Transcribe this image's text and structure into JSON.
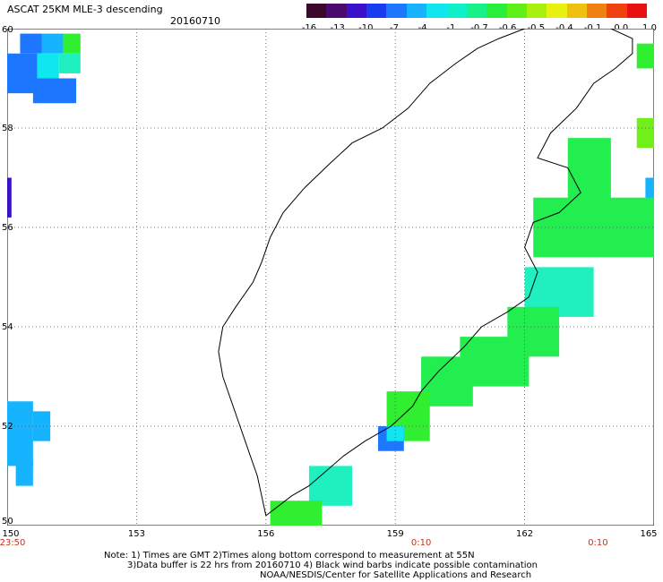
{
  "header": {
    "title": "ASCAT 25KM MLE-3 descending",
    "date": "20160710"
  },
  "colorbar": {
    "colors": [
      "#3a0a2a",
      "#4b0a6e",
      "#3a10c8",
      "#1a3cf0",
      "#1e78ff",
      "#16b4ff",
      "#10e6f0",
      "#10f0c8",
      "#18f08a",
      "#28ee3c",
      "#60f018",
      "#a8f010",
      "#e8f010",
      "#f0c010",
      "#f08010",
      "#f04010",
      "#e81010"
    ],
    "tick_labels": [
      "-16",
      "-13",
      "-10",
      "-7",
      "-4",
      "-1",
      "-0.7",
      "-0.6",
      "-0.5",
      "-0.4",
      "-0.1",
      "0.0",
      "1.0"
    ]
  },
  "axes": {
    "lat_labels": [
      "60",
      "58",
      "56",
      "54",
      "52",
      "50"
    ],
    "lon_labels": [
      "150",
      "153",
      "156",
      "159",
      "162",
      "165"
    ],
    "time_labels": [
      "23:50",
      "0:10",
      "0:10"
    ]
  },
  "notes": {
    "line1": "Note: 1) Times are GMT 2)Times along bottom correspond to measurement at 55N",
    "line2": "3)Data buffer is 22 hrs from 20160710 4) Black wind barbs indicate possible contamination",
    "line3": "NOAA/NESDIS/Center for Satellite Applications and Research"
  },
  "map_data": {
    "lon_range": [
      150,
      165
    ],
    "lat_range": [
      50,
      60
    ],
    "grid_lons": [
      153,
      156,
      159,
      162
    ],
    "grid_lats": [
      52,
      54,
      56,
      58
    ],
    "coastline": [
      [
        156.0,
        50.2
      ],
      [
        156.6,
        50.6
      ],
      [
        157.0,
        50.8
      ],
      [
        157.8,
        51.4
      ],
      [
        158.3,
        51.7
      ],
      [
        158.9,
        52.0
      ],
      [
        159.4,
        52.4
      ],
      [
        159.6,
        52.7
      ],
      [
        160.0,
        53.1
      ],
      [
        160.6,
        53.6
      ],
      [
        161.0,
        54.0
      ],
      [
        161.6,
        54.3
      ],
      [
        162.1,
        54.6
      ],
      [
        162.3,
        55.1
      ],
      [
        162.0,
        55.6
      ],
      [
        162.2,
        56.1
      ],
      [
        162.8,
        56.3
      ],
      [
        163.3,
        56.7
      ],
      [
        163.0,
        57.2
      ],
      [
        162.3,
        57.4
      ],
      [
        162.6,
        57.9
      ],
      [
        163.2,
        58.4
      ],
      [
        163.6,
        58.9
      ],
      [
        164.1,
        59.2
      ],
      [
        164.5,
        59.5
      ],
      [
        164.5,
        59.8
      ],
      [
        164.0,
        60.0
      ]
    ],
    "west_coast": [
      [
        156.0,
        50.2
      ],
      [
        155.9,
        50.6
      ],
      [
        155.8,
        51.0
      ],
      [
        155.6,
        51.5
      ],
      [
        155.4,
        52.0
      ],
      [
        155.2,
        52.5
      ],
      [
        155.0,
        53.0
      ],
      [
        154.9,
        53.5
      ],
      [
        155.0,
        54.0
      ],
      [
        155.3,
        54.4
      ],
      [
        155.7,
        54.9
      ],
      [
        155.9,
        55.3
      ],
      [
        156.1,
        55.8
      ],
      [
        156.4,
        56.3
      ],
      [
        156.9,
        56.8
      ],
      [
        157.5,
        57.3
      ],
      [
        158.0,
        57.7
      ],
      [
        158.7,
        58.0
      ],
      [
        159.3,
        58.4
      ],
      [
        159.8,
        58.9
      ],
      [
        160.4,
        59.3
      ],
      [
        160.9,
        59.6
      ],
      [
        161.4,
        59.8
      ],
      [
        162.0,
        60.0
      ]
    ],
    "cells": [
      {
        "lon": 150.3,
        "lat": 59.9,
        "w": 0.5,
        "h": 0.4,
        "v": -5.0
      },
      {
        "lon": 150.8,
        "lat": 59.9,
        "w": 0.5,
        "h": 0.4,
        "v": -2.0
      },
      {
        "lon": 151.3,
        "lat": 59.9,
        "w": 0.4,
        "h": 0.4,
        "v": -0.55
      },
      {
        "lon": 150.0,
        "lat": 59.5,
        "w": 0.7,
        "h": 0.8,
        "v": -7.0
      },
      {
        "lon": 150.7,
        "lat": 59.5,
        "w": 0.5,
        "h": 0.5,
        "v": -1.0
      },
      {
        "lon": 151.2,
        "lat": 59.5,
        "w": 0.5,
        "h": 0.4,
        "v": -0.7
      },
      {
        "lon": 150.6,
        "lat": 59.0,
        "w": 1.0,
        "h": 0.5,
        "v": -5.0
      },
      {
        "lon": 150.0,
        "lat": 57.0,
        "w": 0.1,
        "h": 0.8,
        "v": -12.0
      },
      {
        "lon": 150.0,
        "lat": 52.5,
        "w": 0.6,
        "h": 1.3,
        "v": -1.5
      },
      {
        "lon": 150.6,
        "lat": 52.3,
        "w": 0.4,
        "h": 0.6,
        "v": -1.2
      },
      {
        "lon": 150.2,
        "lat": 51.3,
        "w": 0.4,
        "h": 0.5,
        "v": -2.5
      },
      {
        "lon": 164.6,
        "lat": 59.7,
        "w": 0.4,
        "h": 0.5,
        "v": -0.55
      },
      {
        "lon": 164.6,
        "lat": 58.2,
        "w": 0.4,
        "h": 0.6,
        "v": -0.45
      },
      {
        "lon": 164.8,
        "lat": 57.0,
        "w": 0.2,
        "h": 0.6,
        "v": -1.5
      },
      {
        "lon": 163.0,
        "lat": 57.8,
        "w": 1.0,
        "h": 1.5,
        "v": -0.6
      },
      {
        "lon": 162.2,
        "lat": 56.6,
        "w": 2.8,
        "h": 1.2,
        "v": -0.6
      },
      {
        "lon": 162.0,
        "lat": 55.2,
        "w": 1.6,
        "h": 1.0,
        "v": -0.7
      },
      {
        "lon": 161.6,
        "lat": 54.4,
        "w": 1.2,
        "h": 1.0,
        "v": -0.6
      },
      {
        "lon": 160.5,
        "lat": 53.8,
        "w": 1.6,
        "h": 1.0,
        "v": -0.6
      },
      {
        "lon": 159.6,
        "lat": 53.4,
        "w": 1.2,
        "h": 1.0,
        "v": -0.6
      },
      {
        "lon": 158.8,
        "lat": 52.7,
        "w": 1.0,
        "h": 1.0,
        "v": -0.55
      },
      {
        "lon": 158.6,
        "lat": 52.0,
        "w": 0.6,
        "h": 0.5,
        "v": -6.0
      },
      {
        "lon": 158.8,
        "lat": 52.0,
        "w": 0.4,
        "h": 0.3,
        "v": -1.0
      },
      {
        "lon": 157.0,
        "lat": 51.2,
        "w": 1.0,
        "h": 0.8,
        "v": -0.7
      },
      {
        "lon": 156.1,
        "lat": 50.5,
        "w": 1.2,
        "h": 0.8,
        "v": -0.55
      }
    ]
  }
}
